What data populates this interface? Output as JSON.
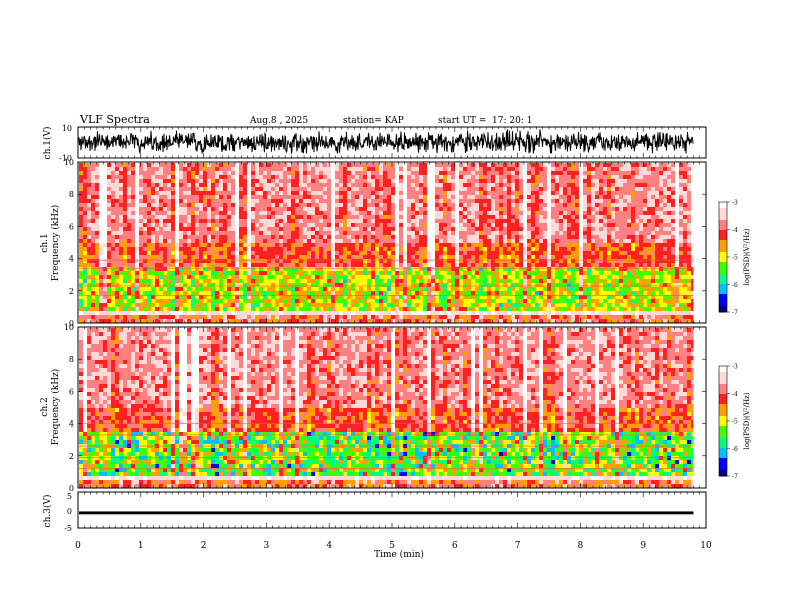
{
  "header": {
    "title": "VLF Spectra",
    "date": "Aug.8 , 2025",
    "station": "station= KAP",
    "start_label": "start UT =",
    "start_time": "17: 20: 1"
  },
  "chart_data": [
    {
      "type": "line",
      "name": "ch1-waveform",
      "ylabel": "ch.1(V)",
      "ylim": [
        -10,
        10
      ],
      "yticks": [
        "10",
        "-10"
      ],
      "xlim": [
        0,
        10
      ],
      "signal_span_min": [
        0,
        9.8
      ],
      "typical_amplitude_v": [
        -5,
        5
      ]
    },
    {
      "type": "heatmap",
      "name": "ch1-spectrogram",
      "ylabel_line1": "ch.1",
      "ylabel_line2": "Frequency (kHz)",
      "ylim": [
        0,
        10
      ],
      "yticks": [
        "0",
        "2",
        "4",
        "6",
        "8",
        "10"
      ],
      "xlim": [
        0,
        10
      ],
      "data_span_min": [
        0,
        9.8
      ],
      "colorbar": {
        "label": "log(PSD)(V²/Hz)",
        "range": [
          -7,
          -3
        ],
        "ticks": [
          "-3",
          "-4",
          "-5",
          "-6",
          "-7"
        ]
      },
      "bands_khz": [
        1.7,
        2.3,
        3.4,
        3.9
      ]
    },
    {
      "type": "heatmap",
      "name": "ch2-spectrogram",
      "ylabel_line1": "ch.2",
      "ylabel_line2": "Frequency (kHz)",
      "ylim": [
        0,
        10
      ],
      "yticks": [
        "0",
        "2",
        "4",
        "6",
        "8",
        "10"
      ],
      "xlim": [
        0,
        10
      ],
      "data_span_min": [
        0,
        9.8
      ],
      "colorbar": {
        "label": "log(PSD)(V²/Hz)",
        "range": [
          -7,
          -3
        ],
        "ticks": [
          "-3",
          "-4",
          "-5",
          "-6",
          "-7"
        ]
      },
      "bands_khz": [
        1.2,
        1.9,
        2.6,
        3.3,
        4.0
      ]
    },
    {
      "type": "line",
      "name": "ch3-waveform",
      "ylabel": "ch.3(V)",
      "ylim": [
        -5,
        5
      ],
      "yticks": [
        "5",
        "0",
        "-5"
      ],
      "xlim": [
        0,
        10
      ],
      "signal_span_min": [
        0,
        9.8
      ],
      "typical_amplitude_v": [
        -1.2,
        -0.4
      ]
    }
  ],
  "x_axis": {
    "label": "Time (min)",
    "ticks": [
      "0",
      "1",
      "2",
      "3",
      "4",
      "5",
      "6",
      "7",
      "8",
      "9",
      "10"
    ]
  },
  "colormap": [
    "#000080",
    "#0000ff",
    "#00c0ff",
    "#00ff80",
    "#40ff00",
    "#ffff00",
    "#ffa000",
    "#ff2020",
    "#ff8080",
    "#ffd8d8",
    "#ffffff"
  ]
}
